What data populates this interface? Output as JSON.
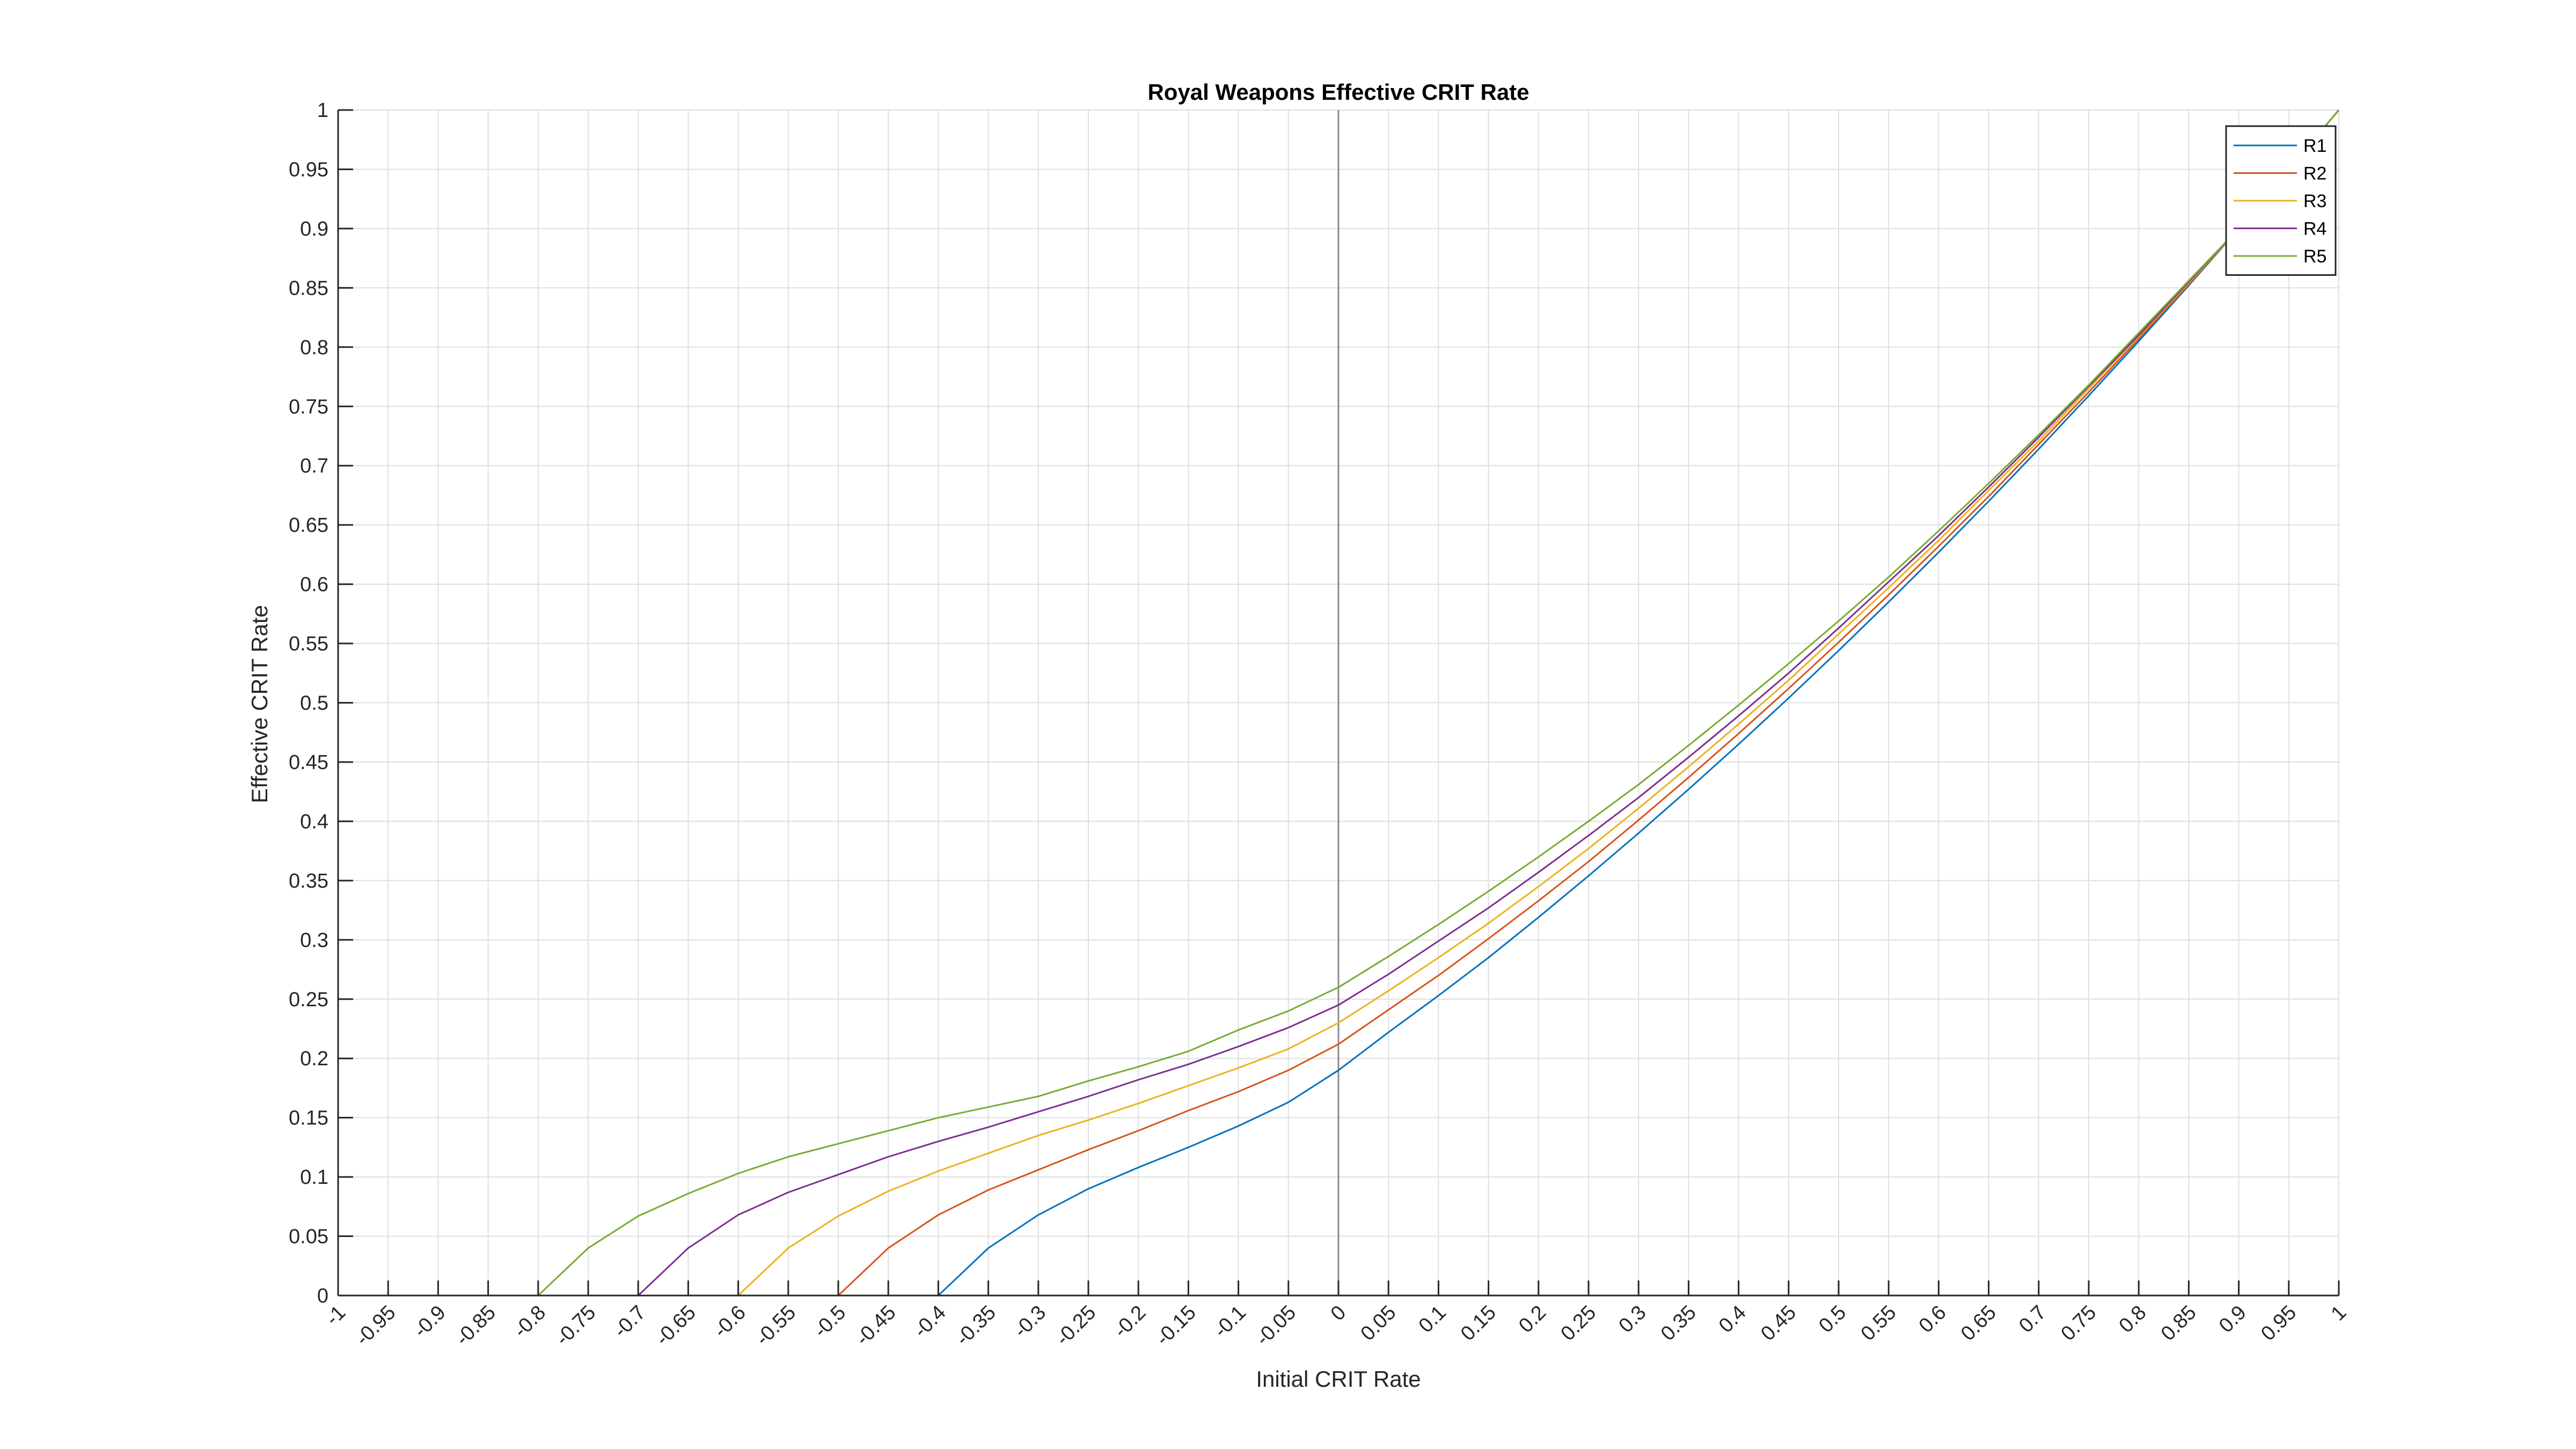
{
  "chart_data": {
    "type": "line",
    "title": "Royal Weapons Effective CRIT Rate",
    "xlabel": "Initial CRIT Rate",
    "ylabel": "Effective CRIT Rate",
    "xlim": [
      -1,
      1
    ],
    "ylim": [
      0,
      1
    ],
    "grid": true,
    "legend_position": "top-right",
    "x_ticks": [
      "-1",
      "-0.95",
      "-0.9",
      "-0.85",
      "-0.8",
      "-0.75",
      "-0.7",
      "-0.65",
      "-0.6",
      "-0.55",
      "-0.5",
      "-0.45",
      "-0.4",
      "-0.35",
      "-0.3",
      "-0.25",
      "-0.2",
      "-0.15",
      "-0.1",
      "-0.05",
      "0",
      "0.05",
      "0.1",
      "0.15",
      "0.2",
      "0.25",
      "0.3",
      "0.35",
      "0.4",
      "0.45",
      "0.5",
      "0.55",
      "0.6",
      "0.65",
      "0.7",
      "0.75",
      "0.8",
      "0.85",
      "0.9",
      "0.95",
      "1"
    ],
    "y_ticks": [
      "0",
      "0.05",
      "0.1",
      "0.15",
      "0.2",
      "0.25",
      "0.3",
      "0.35",
      "0.4",
      "0.45",
      "0.5",
      "0.55",
      "0.6",
      "0.65",
      "0.7",
      "0.75",
      "0.8",
      "0.85",
      "0.9",
      "0.95",
      "1"
    ],
    "x": [
      -1,
      -0.95,
      -0.9,
      -0.85,
      -0.8,
      -0.75,
      -0.7,
      -0.65,
      -0.6,
      -0.55,
      -0.5,
      -0.45,
      -0.4,
      -0.35,
      -0.3,
      -0.25,
      -0.2,
      -0.15,
      -0.1,
      -0.05,
      0,
      0.05,
      0.1,
      0.15,
      0.2,
      0.25,
      0.3,
      0.35,
      0.4,
      0.45,
      0.5,
      0.55,
      0.6,
      0.65,
      0.7,
      0.75,
      0.8,
      0.85,
      0.9,
      0.95,
      1
    ],
    "series": [
      {
        "name": "R1",
        "color": "#0072BD",
        "values": [
          0,
          0,
          0,
          0,
          0,
          0,
          0,
          0,
          0,
          0,
          0,
          0,
          0,
          0.04,
          0.068,
          0.09,
          0.108,
          0.125,
          0.143,
          0.163,
          0.19,
          0.222,
          0.253,
          0.285,
          0.319,
          0.354,
          0.39,
          0.427,
          0.465,
          0.504,
          0.544,
          0.585,
          0.627,
          0.67,
          0.714,
          0.759,
          0.805,
          0.852,
          0.9,
          0.95,
          1
        ]
      },
      {
        "name": "R2",
        "color": "#D95319",
        "values": [
          0,
          0,
          0,
          0,
          0,
          0,
          0,
          0,
          0,
          0,
          0,
          0.04,
          0.068,
          0.089,
          0.106,
          0.123,
          0.139,
          0.156,
          0.172,
          0.19,
          0.212,
          0.241,
          0.27,
          0.301,
          0.333,
          0.366,
          0.401,
          0.437,
          0.474,
          0.512,
          0.551,
          0.591,
          0.632,
          0.674,
          0.718,
          0.762,
          0.807,
          0.853,
          0.9,
          0.95,
          1
        ]
      },
      {
        "name": "R3",
        "color": "#EDB120",
        "values": [
          0,
          0,
          0,
          0,
          0,
          0,
          0,
          0,
          0,
          0.04,
          0.067,
          0.088,
          0.105,
          0.12,
          0.135,
          0.148,
          0.162,
          0.177,
          0.192,
          0.208,
          0.23,
          0.257,
          0.285,
          0.314,
          0.345,
          0.377,
          0.411,
          0.446,
          0.482,
          0.519,
          0.558,
          0.597,
          0.637,
          0.679,
          0.721,
          0.765,
          0.809,
          0.854,
          0.9,
          0.95,
          1
        ]
      },
      {
        "name": "R4",
        "color": "#7E2F8E",
        "values": [
          0,
          0,
          0,
          0,
          0,
          0,
          0,
          0.04,
          0.068,
          0.087,
          0.102,
          0.117,
          0.13,
          0.142,
          0.155,
          0.168,
          0.182,
          0.195,
          0.21,
          0.226,
          0.245,
          0.271,
          0.299,
          0.327,
          0.357,
          0.388,
          0.42,
          0.454,
          0.489,
          0.525,
          0.563,
          0.602,
          0.641,
          0.682,
          0.724,
          0.767,
          0.81,
          0.855,
          0.9,
          0.95,
          1
        ]
      },
      {
        "name": "R5",
        "color": "#77AC30",
        "values": [
          0,
          0,
          0,
          0,
          0,
          0.04,
          0.067,
          0.086,
          0.103,
          0.117,
          0.128,
          0.139,
          0.15,
          0.159,
          0.168,
          0.181,
          0.193,
          0.206,
          0.224,
          0.24,
          0.26,
          0.286,
          0.313,
          0.341,
          0.37,
          0.4,
          0.431,
          0.464,
          0.498,
          0.533,
          0.569,
          0.606,
          0.645,
          0.685,
          0.726,
          0.768,
          0.812,
          0.856,
          0.9,
          0.95,
          1
        ]
      }
    ]
  }
}
